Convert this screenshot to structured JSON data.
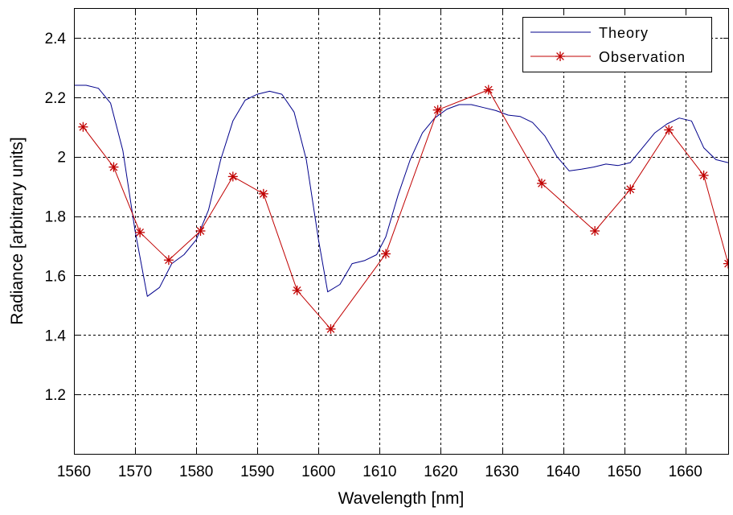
{
  "chart_data": {
    "type": "line",
    "title": "",
    "xlabel": "Wavelength [nm]",
    "ylabel": "Radiance [arbitrary units]",
    "xlim": [
      1560,
      1667
    ],
    "ylim": [
      1.0,
      2.5
    ],
    "xticks": [
      1560,
      1570,
      1580,
      1590,
      1600,
      1610,
      1620,
      1630,
      1640,
      1650,
      1660
    ],
    "yticks": [
      1.2,
      1.4,
      1.6,
      1.8,
      2.0,
      2.2,
      2.4
    ],
    "ytick_labels": [
      "1.2",
      "1.4",
      "1.6",
      "1.8",
      "2",
      "2.2",
      "2.4"
    ],
    "grid": true,
    "legend_position": "top-right",
    "series": [
      {
        "name": "Theory",
        "color": "#00008b",
        "marker": "none",
        "points": [
          [
            1560,
            2.24
          ],
          [
            1562,
            2.24
          ],
          [
            1564,
            2.23
          ],
          [
            1566,
            2.18
          ],
          [
            1568,
            2.02
          ],
          [
            1570,
            1.75
          ],
          [
            1572,
            1.53
          ],
          [
            1574,
            1.56
          ],
          [
            1576,
            1.64
          ],
          [
            1578,
            1.67
          ],
          [
            1580,
            1.72
          ],
          [
            1582,
            1.82
          ],
          [
            1584,
            1.99
          ],
          [
            1586,
            2.12
          ],
          [
            1588,
            2.19
          ],
          [
            1590,
            2.21
          ],
          [
            1592,
            2.22
          ],
          [
            1594,
            2.21
          ],
          [
            1596,
            2.15
          ],
          [
            1598,
            1.99
          ],
          [
            1600,
            1.72
          ],
          [
            1601.5,
            1.545
          ],
          [
            1603.5,
            1.57
          ],
          [
            1605.5,
            1.64
          ],
          [
            1607.5,
            1.65
          ],
          [
            1609.5,
            1.67
          ],
          [
            1611,
            1.73
          ],
          [
            1613,
            1.87
          ],
          [
            1615,
            1.99
          ],
          [
            1617,
            2.08
          ],
          [
            1619,
            2.13
          ],
          [
            1621,
            2.16
          ],
          [
            1623,
            2.175
          ],
          [
            1625,
            2.175
          ],
          [
            1627,
            2.165
          ],
          [
            1629,
            2.155
          ],
          [
            1631,
            2.14
          ],
          [
            1633,
            2.135
          ],
          [
            1635,
            2.115
          ],
          [
            1637,
            2.07
          ],
          [
            1639,
            2.0
          ],
          [
            1641,
            1.952
          ],
          [
            1643,
            1.958
          ],
          [
            1645,
            1.965
          ],
          [
            1647,
            1.975
          ],
          [
            1649,
            1.97
          ],
          [
            1651,
            1.98
          ],
          [
            1653,
            2.03
          ],
          [
            1655,
            2.08
          ],
          [
            1657,
            2.11
          ],
          [
            1659,
            2.13
          ],
          [
            1661,
            2.12
          ],
          [
            1663,
            2.03
          ],
          [
            1665,
            1.99
          ],
          [
            1667,
            1.98
          ]
        ]
      },
      {
        "name": "Observation",
        "color": "#c00000",
        "marker": "star",
        "points": [
          [
            1561.5,
            2.1
          ],
          [
            1566.5,
            1.965
          ],
          [
            1570.8,
            1.745
          ],
          [
            1575.5,
            1.652
          ],
          [
            1580.7,
            1.75
          ],
          [
            1586.0,
            1.933
          ],
          [
            1591.0,
            1.875
          ],
          [
            1596.5,
            1.55
          ],
          [
            1602.0,
            1.42
          ],
          [
            1611.0,
            1.673
          ],
          [
            1619.5,
            2.157
          ],
          [
            1627.8,
            2.225
          ],
          [
            1636.5,
            1.91
          ],
          [
            1645.2,
            1.75
          ],
          [
            1651.0,
            1.89
          ],
          [
            1657.3,
            2.09
          ],
          [
            1663.0,
            1.937
          ],
          [
            1667.0,
            1.64
          ]
        ]
      }
    ]
  }
}
